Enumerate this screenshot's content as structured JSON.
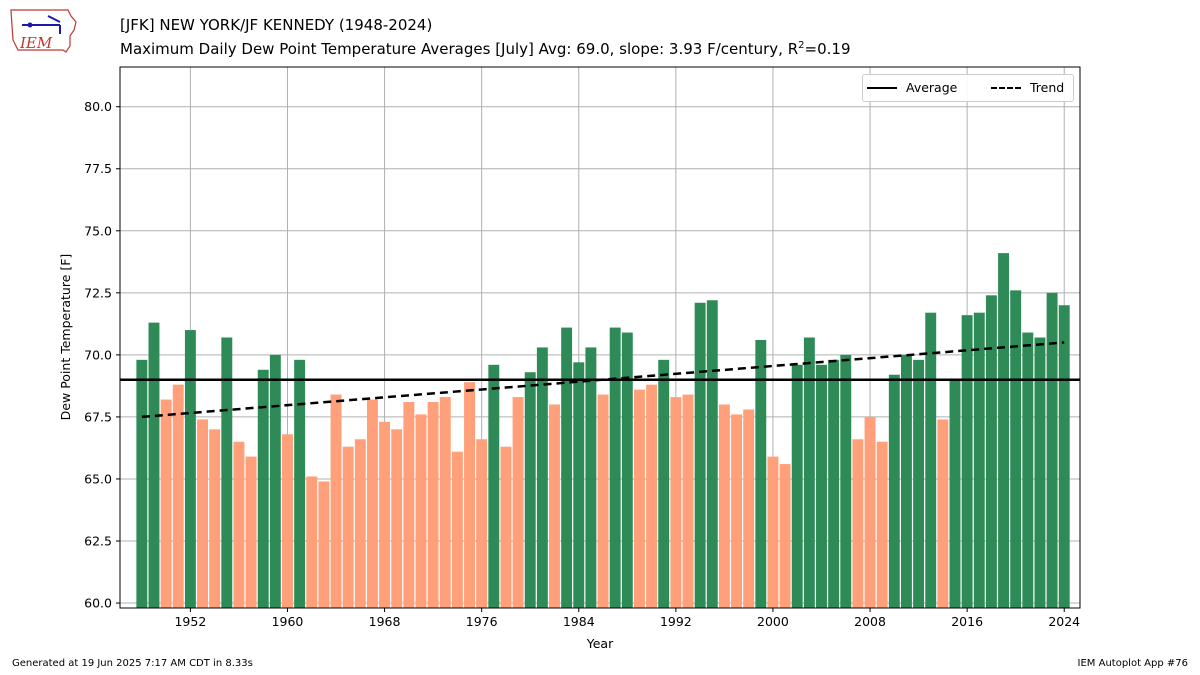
{
  "header": {
    "title": "[JFK] NEW YORK/JF KENNEDY (1948-2024)",
    "subtitle_main": "Maximum Daily Dew Point Temperature Averages [July]  Avg: 69.0, slope: 3.93 F/century, R",
    "subtitle_sup": "2",
    "subtitle_tail": "=0.19",
    "logo_text": "IEM"
  },
  "footer": {
    "generated": "Generated at 19 Jun 2025 7:17 AM CDT in 8.33s",
    "app": "IEM Autoplot App #76"
  },
  "colors": {
    "above": "#2e8b57",
    "below": "#ffa07a",
    "average_line": "#000000",
    "trend_line": "#000000",
    "grid": "#b0b0b0"
  },
  "chart_data": {
    "type": "bar",
    "xlabel": "Year",
    "ylabel": "Dew Point Temperature [F]",
    "xlim": [
      1946.2,
      1924.6
    ],
    "ylim": [
      59.8,
      81.6
    ],
    "xticks": [
      1952,
      1960,
      1968,
      1976,
      1984,
      1992,
      2000,
      2008,
      2016,
      2024
    ],
    "yticks": [
      "60.0",
      "62.5",
      "65.0",
      "67.5",
      "70.0",
      "72.5",
      "75.0",
      "77.5",
      "80.0"
    ],
    "grid": true,
    "legend_position": "upper right",
    "legend": [
      {
        "label": "Average",
        "style": "solid"
      },
      {
        "label": "Trend",
        "style": "dashed"
      }
    ],
    "average": 69.0,
    "trend": {
      "start_year": 1948,
      "start_value": 67.5,
      "end_year": 2024,
      "end_value": 70.5
    },
    "years": [
      1948,
      1949,
      1950,
      1951,
      1952,
      1953,
      1954,
      1955,
      1956,
      1957,
      1958,
      1959,
      1960,
      1961,
      1962,
      1963,
      1964,
      1965,
      1966,
      1967,
      1968,
      1969,
      1970,
      1971,
      1972,
      1973,
      1974,
      1975,
      1976,
      1977,
      1978,
      1979,
      1980,
      1981,
      1982,
      1983,
      1984,
      1985,
      1986,
      1987,
      1988,
      1989,
      1990,
      1991,
      1992,
      1993,
      1994,
      1995,
      1996,
      1997,
      1998,
      1999,
      2000,
      2001,
      2002,
      2003,
      2004,
      2005,
      2006,
      2007,
      2008,
      2009,
      2010,
      2011,
      2012,
      2013,
      2014,
      2015,
      2016,
      2017,
      2018,
      2019,
      2020,
      2021,
      2022,
      2023,
      2024
    ],
    "values": [
      69.8,
      71.3,
      68.2,
      68.8,
      71.0,
      67.4,
      67.0,
      70.7,
      66.5,
      65.9,
      69.4,
      70.0,
      66.8,
      69.8,
      65.1,
      64.9,
      68.4,
      66.3,
      66.6,
      68.2,
      67.3,
      67.0,
      68.1,
      67.6,
      68.1,
      68.3,
      66.1,
      68.9,
      66.6,
      69.6,
      66.3,
      68.3,
      69.3,
      70.3,
      68.0,
      71.1,
      69.7,
      70.3,
      68.4,
      71.1,
      70.9,
      68.6,
      68.8,
      69.8,
      68.3,
      68.4,
      72.1,
      72.2,
      68.0,
      67.6,
      67.8,
      70.6,
      65.9,
      65.6,
      69.6,
      70.7,
      69.6,
      69.8,
      70.0,
      66.6,
      67.5,
      66.5,
      69.2,
      70.0,
      69.8,
      71.7,
      67.4,
      69.0,
      71.6,
      71.7,
      72.4,
      74.1,
      72.6,
      70.9,
      70.7,
      72.5,
      72.0
    ]
  }
}
